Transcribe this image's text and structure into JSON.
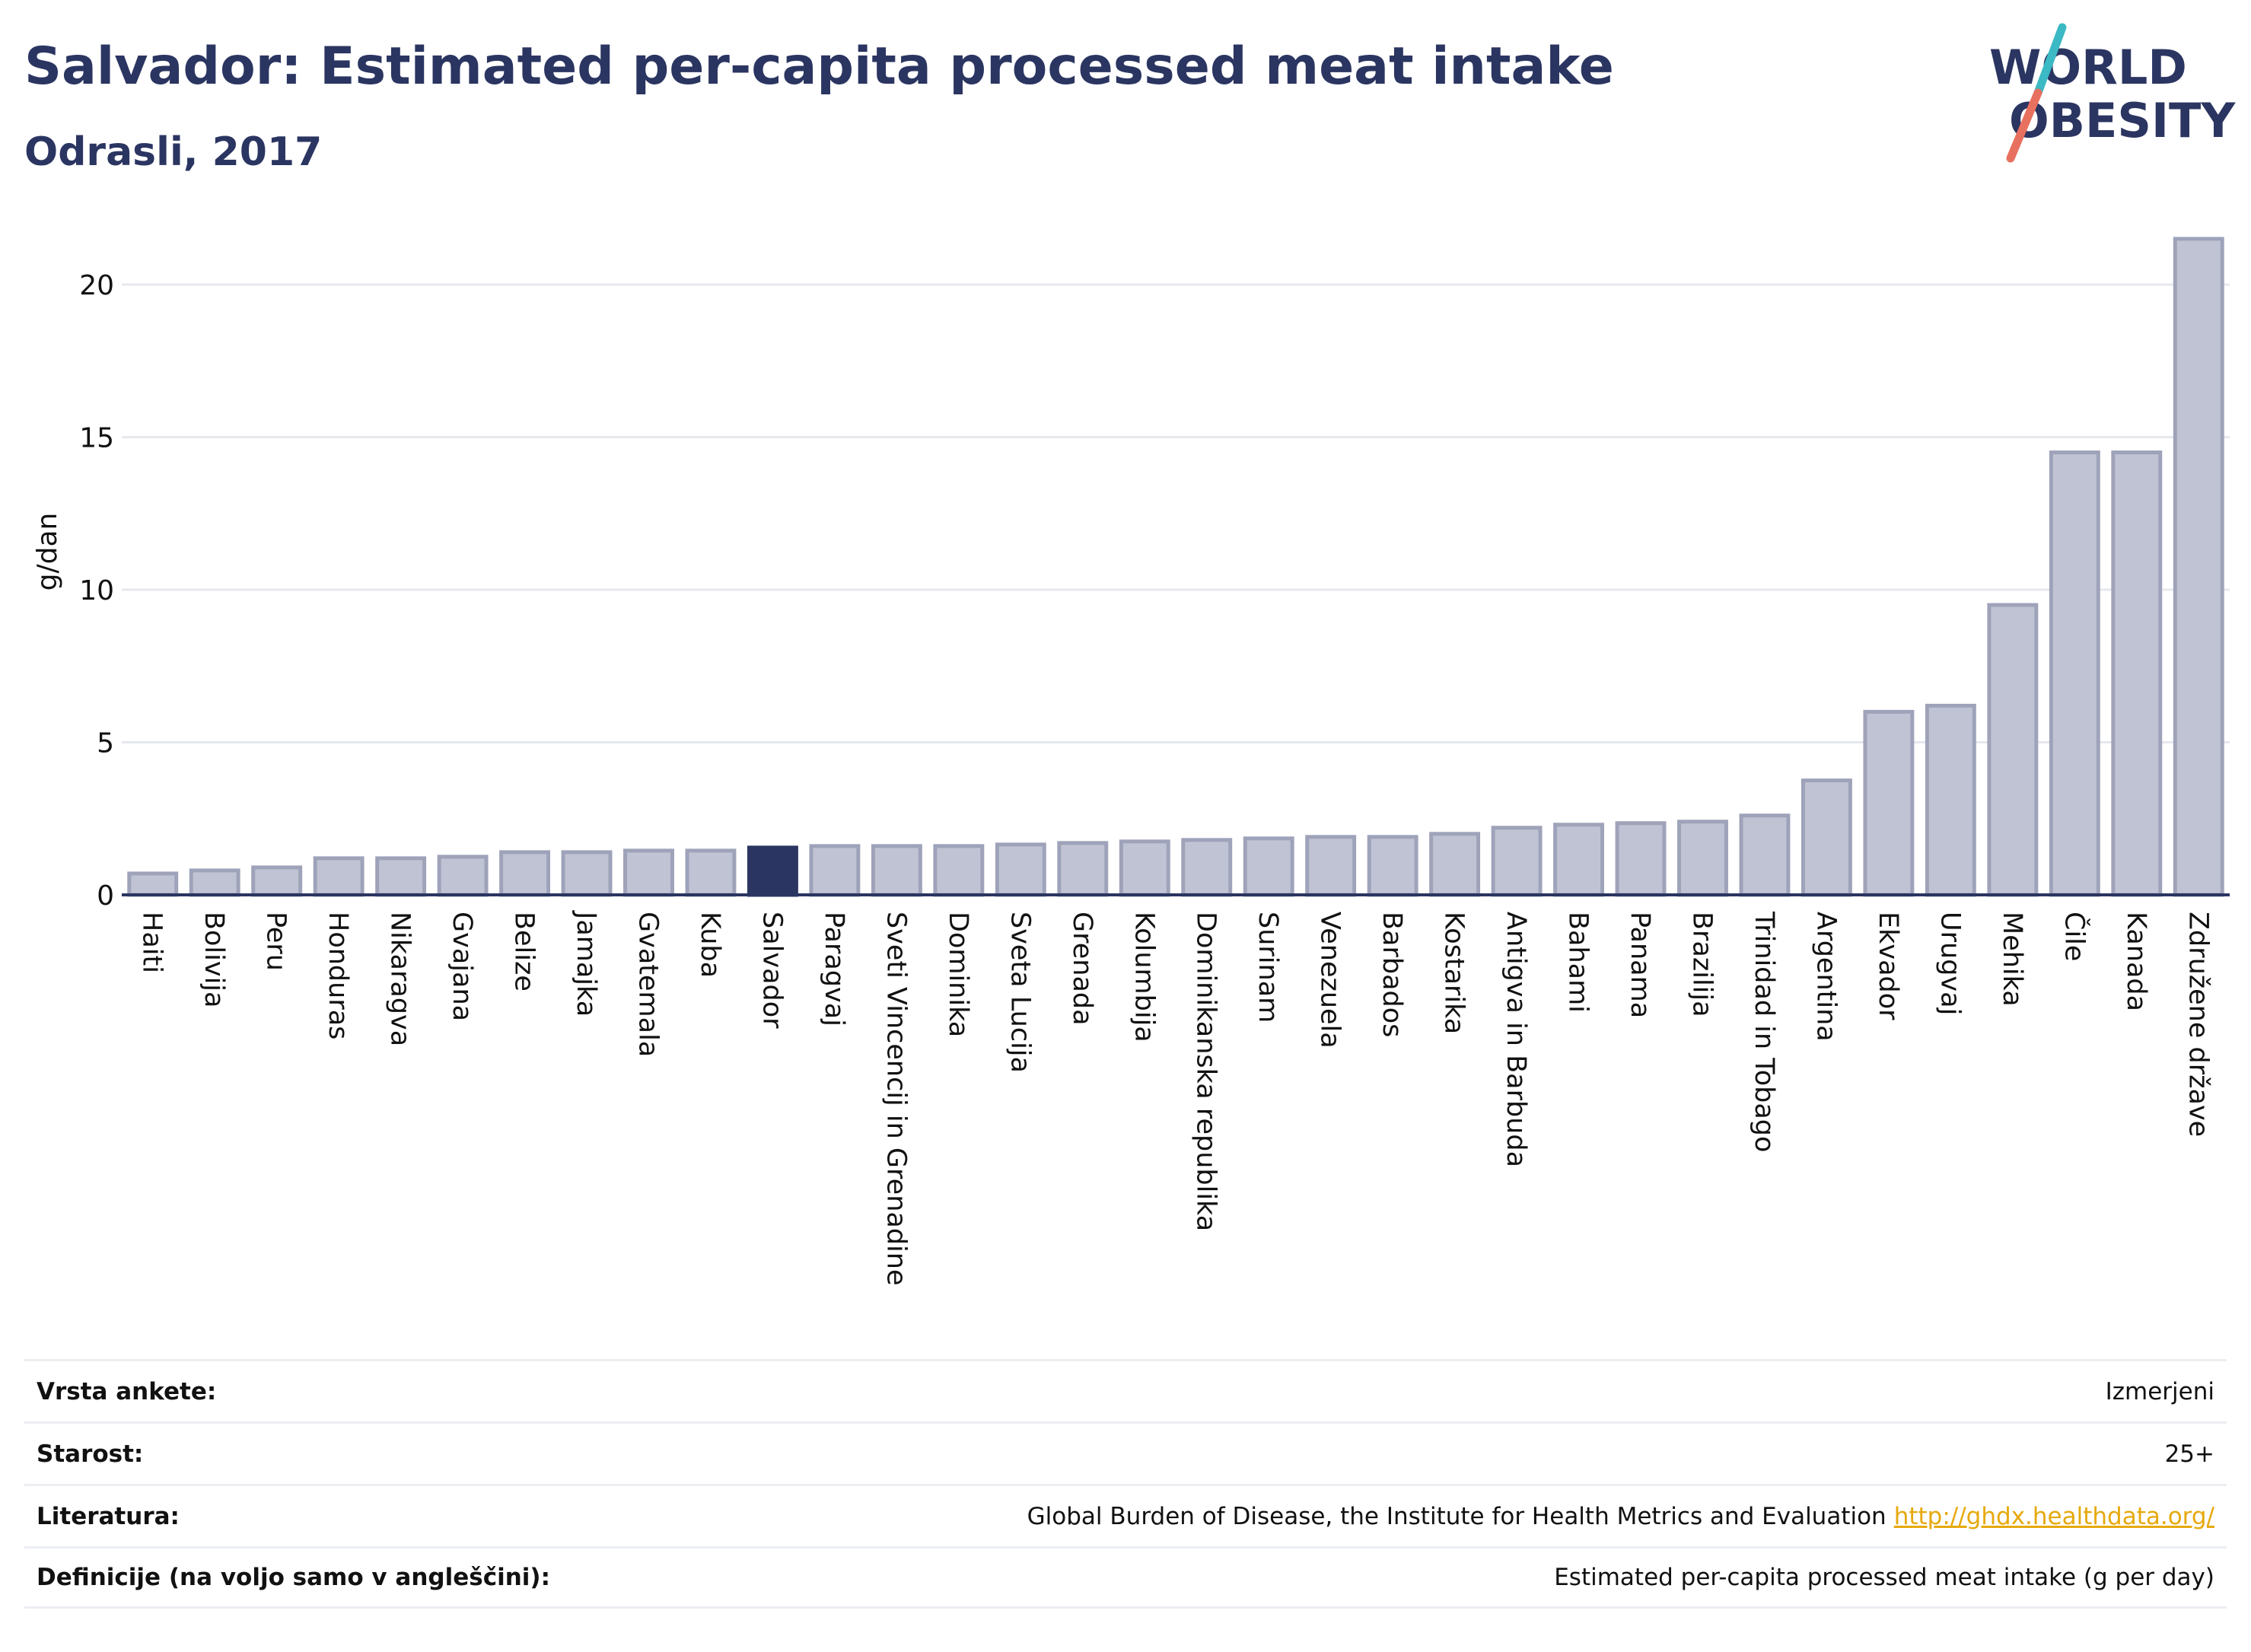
{
  "header": {
    "title": "Salvador: Estimated per-capita processed meat intake",
    "subtitle": "Odrasli, 2017"
  },
  "logo": {
    "line1": "WORLD",
    "line2": "OBESITY",
    "colors": {
      "text": "#2b3561",
      "slash_teal": "#3bb9c4",
      "slash_coral": "#e8705f"
    }
  },
  "colors": {
    "bar": "#c0c3d3",
    "bar_stroke": "#9ea3ba",
    "highlight": "#2b3561",
    "grid": "#e6e8ee",
    "axis": "#2b3561"
  },
  "chart_data": {
    "type": "bar",
    "ylabel": "g/dan",
    "ylim": [
      0,
      22
    ],
    "yticks": [
      0,
      5,
      10,
      15,
      20
    ],
    "grid": true,
    "highlight": "Salvador",
    "categories": [
      "Haiti",
      "Bolivija",
      "Peru",
      "Honduras",
      "Nikaragva",
      "Gvajana",
      "Belize",
      "Jamajka",
      "Gvatemala",
      "Kuba",
      "Salvador",
      "Paragvaj",
      "Sveti Vincencij in Grenadine",
      "Dominika",
      "Sveta Lucija",
      "Grenada",
      "Kolumbija",
      "Dominikanska republika",
      "Surinam",
      "Venezuela",
      "Barbados",
      "Kostarika",
      "Antigva in Barbuda",
      "Bahami",
      "Panama",
      "Brazilija",
      "Trinidad in Tobago",
      "Argentina",
      "Ekvador",
      "Urugvaj",
      "Mehika",
      "Čile",
      "Kanada",
      "Združene države"
    ],
    "values": [
      0.7,
      0.8,
      0.9,
      1.2,
      1.2,
      1.25,
      1.4,
      1.4,
      1.45,
      1.45,
      1.55,
      1.6,
      1.6,
      1.6,
      1.65,
      1.7,
      1.75,
      1.8,
      1.85,
      1.9,
      1.9,
      2.0,
      2.2,
      2.3,
      2.35,
      2.4,
      2.6,
      3.75,
      6.0,
      6.2,
      9.5,
      14.5,
      14.5,
      21.5
    ]
  },
  "meta": {
    "rows": [
      {
        "label": "Vrsta ankete:",
        "value": "Izmerjeni"
      },
      {
        "label": "Starost:",
        "value": "25+"
      },
      {
        "label": "Literatura:",
        "value": "Global Burden of Disease, the Institute for Health Metrics and Evaluation",
        "link": "http://ghdx.healthdata.org/"
      },
      {
        "label": "Definicije (na voljo samo v angleščini):",
        "value": "Estimated per-capita processed meat intake (g per day)"
      }
    ]
  }
}
